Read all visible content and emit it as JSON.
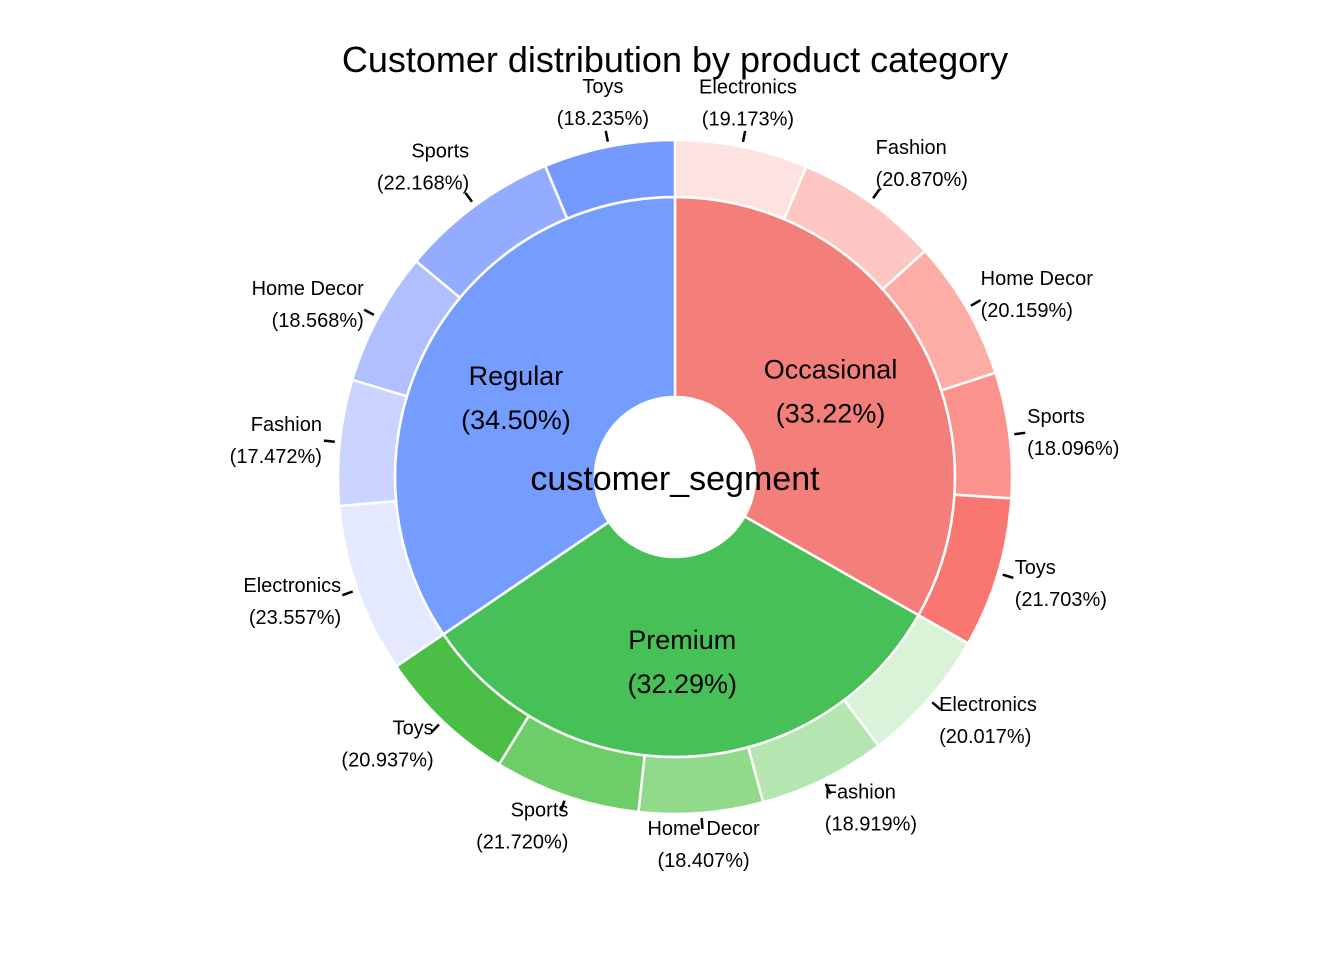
{
  "chart_data": {
    "type": "sunburst",
    "title": "Customer distribution by product category",
    "center_label": "customer_segment",
    "segments": [
      {
        "name": "Occasional",
        "percent_label": "(33.22%)",
        "value": 33.22,
        "color": "#f47f7a",
        "children": [
          {
            "name": "Electronics",
            "percent_label": "(19.173%)",
            "value": 19.173,
            "color": "#fee2e0"
          },
          {
            "name": "Fashion",
            "percent_label": "(20.870%)",
            "value": 20.87,
            "color": "#fec6c2"
          },
          {
            "name": "Home Decor",
            "percent_label": "(20.159%)",
            "value": 20.159,
            "color": "#fdada6"
          },
          {
            "name": "Sports",
            "percent_label": "(18.096%)",
            "value": 18.096,
            "color": "#fb938c"
          },
          {
            "name": "Toys",
            "percent_label": "(21.703%)",
            "value": 21.703,
            "color": "#fa7771"
          }
        ]
      },
      {
        "name": "Premium",
        "percent_label": "(32.29%)",
        "value": 32.29,
        "color": "#47c057",
        "children": [
          {
            "name": "Electronics",
            "percent_label": "(20.017%)",
            "value": 20.017,
            "color": "#d9f2d8"
          },
          {
            "name": "Fashion",
            "percent_label": "(18.919%)",
            "value": 18.919,
            "color": "#b5e6b1"
          },
          {
            "name": "Home Decor",
            "percent_label": "(18.407%)",
            "value": 18.407,
            "color": "#91da8b"
          },
          {
            "name": "Sports",
            "percent_label": "(21.720%)",
            "value": 21.72,
            "color": "#6dcd68"
          },
          {
            "name": "Toys",
            "percent_label": "(20.937%)",
            "value": 20.937,
            "color": "#4bbf45"
          }
        ]
      },
      {
        "name": "Regular",
        "percent_label": "(34.50%)",
        "value": 34.5,
        "color": "#759dff",
        "children": [
          {
            "name": "Electronics",
            "percent_label": "(23.557%)",
            "value": 23.557,
            "color": "#e5e9ff"
          },
          {
            "name": "Fashion",
            "percent_label": "(17.472%)",
            "value": 17.472,
            "color": "#cad4ff"
          },
          {
            "name": "Home Decor",
            "percent_label": "(18.568%)",
            "value": 18.568,
            "color": "#afbfff"
          },
          {
            "name": "Sports",
            "percent_label": "(22.168%)",
            "value": 22.168,
            "color": "#94acff"
          },
          {
            "name": "Toys",
            "percent_label": "(18.235%)",
            "value": 18.235,
            "color": "#759aff"
          }
        ]
      }
    ]
  }
}
